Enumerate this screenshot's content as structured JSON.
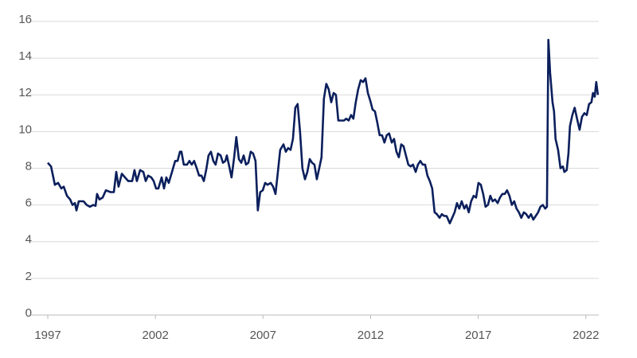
{
  "chart_data": {
    "type": "line",
    "x": [
      1997.0,
      1997.15,
      1997.33,
      1997.48,
      1997.63,
      1997.74,
      1997.89,
      1998.04,
      1998.15,
      1998.26,
      1998.33,
      1998.44,
      1998.66,
      1998.81,
      1998.96,
      1999.11,
      1999.22,
      1999.29,
      1999.4,
      1999.55,
      1999.7,
      1999.92,
      2000.07,
      2000.18,
      2000.29,
      2000.44,
      2000.59,
      2000.74,
      2000.92,
      2001.03,
      2001.14,
      2001.29,
      2001.44,
      2001.55,
      2001.66,
      2001.81,
      2001.92,
      2002.03,
      2002.14,
      2002.29,
      2002.4,
      2002.51,
      2002.62,
      2002.77,
      2002.92,
      2003.03,
      2003.14,
      2003.21,
      2003.32,
      2003.47,
      2003.58,
      2003.69,
      2003.8,
      2003.92,
      2004.03,
      2004.14,
      2004.25,
      2004.36,
      2004.47,
      2004.58,
      2004.69,
      2004.8,
      2004.91,
      2005.03,
      2005.14,
      2005.25,
      2005.32,
      2005.43,
      2005.54,
      2005.65,
      2005.76,
      2005.88,
      2005.99,
      2006.1,
      2006.21,
      2006.32,
      2006.43,
      2006.54,
      2006.65,
      2006.76,
      2006.87,
      2006.99,
      2007.1,
      2007.21,
      2007.36,
      2007.47,
      2007.58,
      2007.69,
      2007.8,
      2007.95,
      2008.06,
      2008.17,
      2008.28,
      2008.39,
      2008.5,
      2008.61,
      2008.72,
      2008.83,
      2008.95,
      2009.06,
      2009.17,
      2009.28,
      2009.39,
      2009.5,
      2009.61,
      2009.72,
      2009.83,
      2009.94,
      2010.05,
      2010.17,
      2010.28,
      2010.39,
      2010.5,
      2010.61,
      2010.76,
      2010.87,
      2010.98,
      2011.09,
      2011.2,
      2011.31,
      2011.42,
      2011.54,
      2011.65,
      2011.76,
      2011.87,
      2011.98,
      2012.09,
      2012.2,
      2012.31,
      2012.42,
      2012.53,
      2012.64,
      2012.75,
      2012.86,
      2012.98,
      2013.09,
      2013.2,
      2013.31,
      2013.42,
      2013.53,
      2013.64,
      2013.75,
      2013.86,
      2013.97,
      2014.09,
      2014.2,
      2014.31,
      2014.42,
      2014.53,
      2014.64,
      2014.75,
      2014.86,
      2014.97,
      2015.08,
      2015.2,
      2015.31,
      2015.42,
      2015.53,
      2015.68,
      2015.79,
      2015.9,
      2016.01,
      2016.12,
      2016.23,
      2016.35,
      2016.45,
      2016.56,
      2016.67,
      2016.79,
      2016.9,
      2017.01,
      2017.12,
      2017.23,
      2017.34,
      2017.45,
      2017.56,
      2017.67,
      2017.78,
      2017.9,
      2018.01,
      2018.12,
      2018.23,
      2018.34,
      2018.45,
      2018.56,
      2018.67,
      2018.78,
      2018.89,
      2019.0,
      2019.12,
      2019.23,
      2019.34,
      2019.45,
      2019.56,
      2019.67,
      2019.78,
      2019.89,
      2020.0,
      2020.11,
      2020.19,
      2020.26,
      2020.34,
      2020.45,
      2020.52,
      2020.59,
      2020.71,
      2020.82,
      2020.93,
      2021.0,
      2021.11,
      2021.19,
      2021.26,
      2021.37,
      2021.48,
      2021.59,
      2021.71,
      2021.82,
      2021.93,
      2022.04,
      2022.15,
      2022.26,
      2022.33,
      2022.41,
      2022.48,
      2022.56
    ],
    "series": [
      {
        "color": "#0b1f5c",
        "values": [
          8.3,
          8.1,
          7.1,
          7.2,
          6.9,
          7.0,
          6.5,
          6.3,
          6.0,
          6.1,
          5.7,
          6.2,
          6.2,
          6.0,
          5.9,
          6.0,
          5.95,
          6.6,
          6.3,
          6.4,
          6.8,
          6.7,
          6.7,
          7.8,
          7.0,
          7.7,
          7.5,
          7.3,
          7.3,
          7.9,
          7.3,
          7.9,
          7.8,
          7.3,
          7.6,
          7.5,
          7.3,
          6.9,
          6.9,
          7.5,
          6.9,
          7.5,
          7.2,
          7.8,
          8.4,
          8.4,
          8.9,
          8.9,
          8.2,
          8.2,
          8.4,
          8.2,
          8.4,
          8.0,
          7.6,
          7.6,
          7.3,
          7.9,
          8.7,
          8.9,
          8.4,
          8.2,
          8.8,
          8.7,
          8.3,
          8.4,
          8.7,
          8.1,
          7.5,
          8.5,
          9.7,
          8.5,
          8.3,
          8.7,
          8.2,
          8.3,
          8.9,
          8.8,
          8.4,
          5.7,
          6.7,
          6.8,
          7.2,
          7.1,
          7.2,
          7.0,
          6.6,
          7.8,
          9.0,
          9.3,
          8.9,
          9.1,
          9.0,
          9.6,
          11.3,
          11.5,
          10.0,
          8.0,
          7.4,
          7.8,
          8.5,
          8.3,
          8.2,
          7.4,
          8.0,
          8.6,
          11.8,
          12.6,
          12.3,
          11.6,
          12.1,
          12.0,
          10.6,
          10.6,
          10.6,
          10.7,
          10.6,
          10.9,
          10.7,
          11.6,
          12.3,
          12.8,
          12.7,
          12.9,
          12.1,
          11.7,
          11.2,
          11.1,
          10.5,
          9.8,
          9.8,
          9.4,
          9.8,
          9.9,
          9.4,
          9.6,
          8.9,
          8.6,
          9.3,
          9.2,
          8.7,
          8.2,
          8.1,
          8.2,
          7.8,
          8.2,
          8.4,
          8.2,
          8.2,
          7.6,
          7.3,
          6.9,
          5.6,
          5.5,
          5.3,
          5.5,
          5.4,
          5.4,
          5.0,
          5.3,
          5.6,
          6.1,
          5.8,
          6.2,
          5.8,
          6.0,
          5.6,
          6.2,
          6.5,
          6.4,
          7.2,
          7.1,
          6.6,
          5.9,
          6.0,
          6.5,
          6.2,
          6.3,
          6.1,
          6.4,
          6.6,
          6.6,
          6.8,
          6.5,
          6.0,
          6.2,
          5.8,
          5.6,
          5.3,
          5.6,
          5.5,
          5.3,
          5.5,
          5.2,
          5.4,
          5.6,
          5.9,
          6.0,
          5.8,
          5.9,
          15.0,
          13.2,
          11.6,
          11.1,
          9.6,
          9.0,
          8.0,
          8.1,
          7.8,
          7.9,
          8.8,
          10.3,
          10.9,
          11.3,
          10.7,
          10.1,
          10.8,
          11.0,
          10.9,
          11.5,
          11.6,
          12.1,
          11.9,
          12.7,
          12.0
        ]
      }
    ],
    "xlim": [
      1997,
      2022.6
    ],
    "xticks": [
      1997,
      2002,
      2007,
      2012,
      2017,
      2022
    ],
    "ylim": [
      0,
      16
    ],
    "yticks": [
      0,
      2,
      4,
      6,
      8,
      10,
      12,
      14,
      16
    ],
    "grid": true
  }
}
